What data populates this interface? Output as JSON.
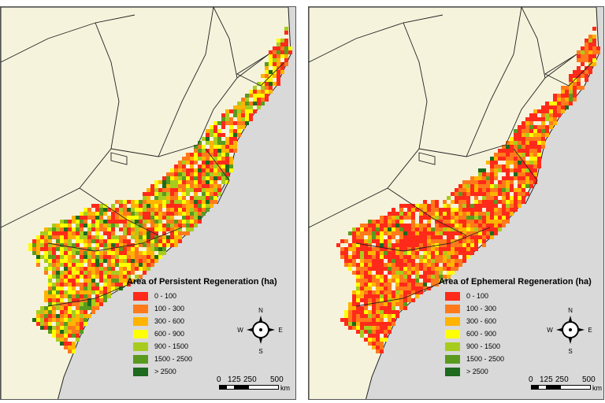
{
  "maps": [
    {
      "legend_title": "Area of Persistent Regeneration (ha)",
      "variant": "persistent"
    },
    {
      "legend_title": "Area of Ephemeral Regeneration (ha)",
      "variant": "ephemeral"
    }
  ],
  "legend_classes": [
    {
      "label": "0 - 100",
      "color": "#ff2a1a"
    },
    {
      "label": "100 - 300",
      "color": "#ff7a1a"
    },
    {
      "label": "300 - 600",
      "color": "#ffb400"
    },
    {
      "label": "600 - 900",
      "color": "#ffff00"
    },
    {
      "label": "900 - 1500",
      "color": "#a8cc1e"
    },
    {
      "label": "1500 - 2500",
      "color": "#5a9a1e"
    },
    {
      "label": "> 2500",
      "color": "#1e6a1e"
    }
  ],
  "compass": {
    "n": "N",
    "s": "S",
    "e": "E",
    "w": "W"
  },
  "scale": {
    "ticks": [
      "0",
      "125",
      "250",
      "500"
    ],
    "unit": "km"
  },
  "colors": {
    "land": "#f6f3dc",
    "outside": "#d9d9d9",
    "border": "#222222"
  },
  "icons": [
    "north-arrow-icon"
  ]
}
